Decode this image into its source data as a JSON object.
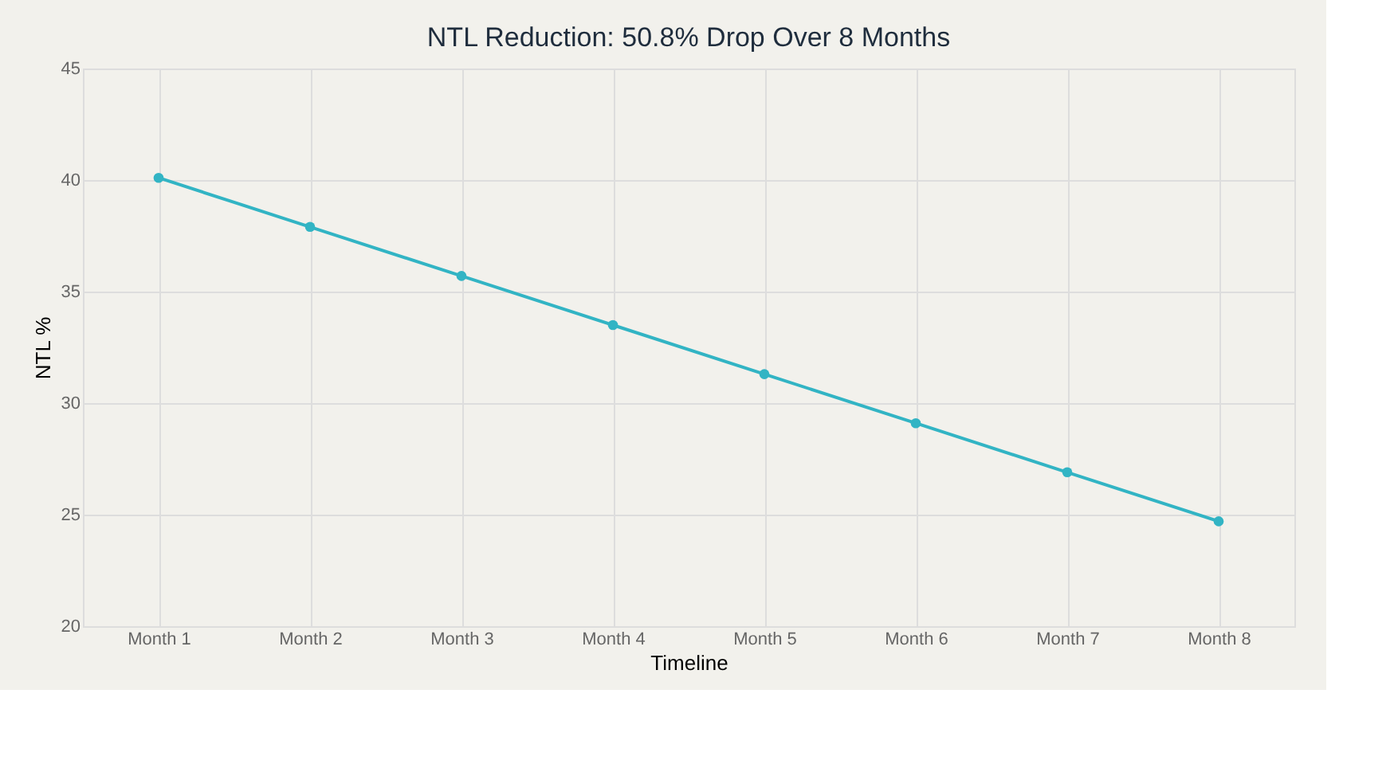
{
  "chart_data": {
    "type": "line",
    "title": "NTL Reduction: 50.8% Drop Over 8 Months",
    "xlabel": "Timeline",
    "ylabel": "NTL %",
    "categories": [
      "Month 1",
      "Month 2",
      "Month 3",
      "Month 4",
      "Month 5",
      "Month 6",
      "Month 7",
      "Month 8"
    ],
    "series": [
      {
        "color": "#32b4c4",
        "values": [
          40.1,
          37.9,
          35.7,
          33.5,
          31.3,
          29.1,
          26.9,
          24.7
        ]
      }
    ],
    "ylim": [
      20,
      45
    ],
    "yticks": [
      20,
      25,
      30,
      35,
      40,
      45
    ],
    "grid": true,
    "marker": "circle",
    "line_style": "solid"
  }
}
